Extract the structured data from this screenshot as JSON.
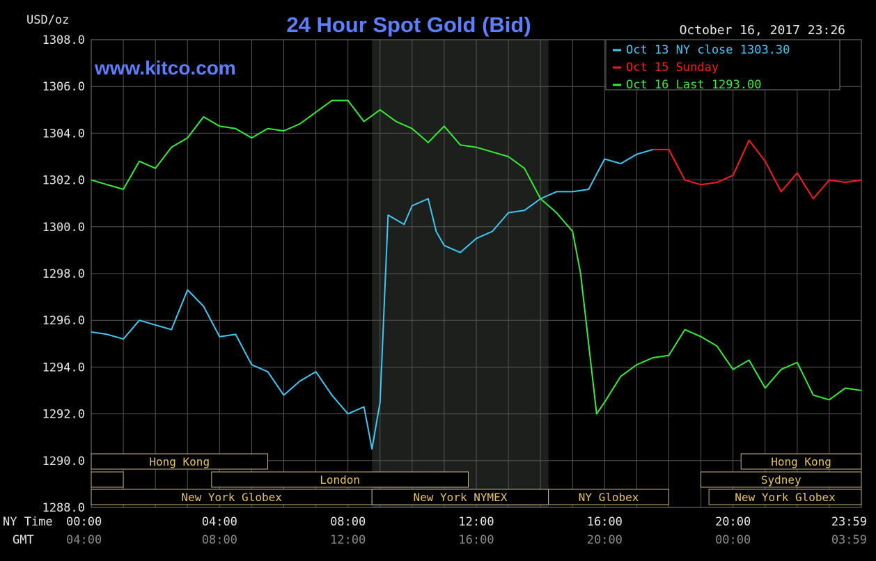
{
  "header": {
    "unit": "USD/oz",
    "title": "24 Hour Spot Gold (Bid)",
    "timestamp": "October 16, 2017 23:26",
    "watermark": "www.kitco.com"
  },
  "legend": [
    {
      "label": "Oct 13 NY close 1303.30",
      "color": "#3ec8f4"
    },
    {
      "label": "Oct 15 Sunday",
      "color": "#ff1a1a"
    },
    {
      "label": "Oct 16 Last 1293.00",
      "color": "#33ee33"
    }
  ],
  "axis_labels": {
    "ny_time": "NY Time",
    "gmt": "GMT"
  },
  "sessions": [
    {
      "label": "Hong Kong",
      "start": 0,
      "end": 5.5,
      "row": 0
    },
    {
      "label": "Hong Kong",
      "start": 20.25,
      "end": 24,
      "row": 0
    },
    {
      "label": "",
      "start": 0,
      "end": 1,
      "row": 1
    },
    {
      "label": "London",
      "start": 3.75,
      "end": 11.75,
      "row": 1
    },
    {
      "label": "Sydney",
      "start": 19,
      "end": 24,
      "row": 1
    },
    {
      "label": "New York Globex",
      "start": 0,
      "end": 8.75,
      "row": 2
    },
    {
      "label": "New York NYMEX",
      "start": 8.75,
      "end": 14.25,
      "row": 2
    },
    {
      "label": "NY Globex",
      "start": 14.25,
      "end": 18,
      "row": 2
    },
    {
      "label": "New York Globex",
      "start": 19.25,
      "end": 24,
      "row": 2
    }
  ],
  "chart_data": {
    "type": "line",
    "title": "24 Hour Spot Gold (Bid)",
    "ylabel": "USD/oz",
    "ylim": [
      1288,
      1308
    ],
    "y_ticks": [
      "1288.0",
      "1290.0",
      "1292.0",
      "1294.0",
      "1296.0",
      "1298.0",
      "1300.0",
      "1302.0",
      "1304.0",
      "1306.0",
      "1308.0"
    ],
    "xlim": [
      0,
      24
    ],
    "x_ticks_ny": [
      "00:00",
      "04:00",
      "08:00",
      "12:00",
      "16:00",
      "20:00",
      "23:59"
    ],
    "x_ticks_gmt": [
      "04:00",
      "08:00",
      "12:00",
      "16:00",
      "20:00",
      "00:00",
      "03:59"
    ],
    "highlight_band": [
      8.75,
      14.25
    ],
    "grid": true,
    "legend_position": "top-right",
    "series": [
      {
        "name": "Oct 13 NY close 1303.30",
        "color": "#3ec8f4",
        "points": [
          [
            0,
            1295.5
          ],
          [
            0.5,
            1295.4
          ],
          [
            1,
            1295.2
          ],
          [
            1.5,
            1296.0
          ],
          [
            2,
            1295.8
          ],
          [
            2.5,
            1295.6
          ],
          [
            3,
            1297.3
          ],
          [
            3.5,
            1296.6
          ],
          [
            4,
            1295.3
          ],
          [
            4.5,
            1295.4
          ],
          [
            5,
            1294.1
          ],
          [
            5.5,
            1293.8
          ],
          [
            6,
            1292.8
          ],
          [
            6.5,
            1293.4
          ],
          [
            7,
            1293.8
          ],
          [
            7.5,
            1292.8
          ],
          [
            8,
            1292.0
          ],
          [
            8.5,
            1292.3
          ],
          [
            8.75,
            1290.5
          ],
          [
            9,
            1292.5
          ],
          [
            9.25,
            1300.5
          ],
          [
            9.75,
            1300.1
          ],
          [
            10,
            1300.9
          ],
          [
            10.5,
            1301.2
          ],
          [
            10.75,
            1299.8
          ],
          [
            11,
            1299.2
          ],
          [
            11.5,
            1298.9
          ],
          [
            12,
            1299.5
          ],
          [
            12.5,
            1299.8
          ],
          [
            13,
            1300.6
          ],
          [
            13.5,
            1300.7
          ],
          [
            14,
            1301.2
          ],
          [
            14.5,
            1301.5
          ],
          [
            15,
            1301.5
          ],
          [
            15.5,
            1301.6
          ],
          [
            16,
            1302.9
          ],
          [
            16.5,
            1302.7
          ],
          [
            17,
            1303.1
          ],
          [
            17.5,
            1303.3
          ]
        ]
      },
      {
        "name": "Oct 15 Sunday",
        "color": "#ff1a1a",
        "points": [
          [
            17.5,
            1303.3
          ],
          [
            18,
            1303.3
          ],
          [
            18.5,
            1302.0
          ],
          [
            19,
            1301.8
          ],
          [
            19.5,
            1301.9
          ],
          [
            20,
            1302.2
          ],
          [
            20.5,
            1303.7
          ],
          [
            21,
            1302.8
          ],
          [
            21.5,
            1301.5
          ],
          [
            22,
            1302.3
          ],
          [
            22.5,
            1301.2
          ],
          [
            23,
            1302.0
          ],
          [
            23.5,
            1301.9
          ],
          [
            24,
            1302.0
          ]
        ]
      },
      {
        "name": "Oct 16 Last 1293.00",
        "color": "#33ee33",
        "points": [
          [
            0,
            1302.0
          ],
          [
            0.5,
            1301.8
          ],
          [
            1,
            1301.6
          ],
          [
            1.5,
            1302.8
          ],
          [
            2,
            1302.5
          ],
          [
            2.5,
            1303.4
          ],
          [
            3,
            1303.8
          ],
          [
            3.5,
            1304.7
          ],
          [
            4,
            1304.3
          ],
          [
            4.5,
            1304.2
          ],
          [
            5,
            1303.8
          ],
          [
            5.5,
            1304.2
          ],
          [
            6,
            1304.1
          ],
          [
            6.5,
            1304.4
          ],
          [
            7,
            1304.9
          ],
          [
            7.5,
            1305.4
          ],
          [
            8,
            1305.4
          ],
          [
            8.5,
            1304.5
          ],
          [
            9,
            1305.0
          ],
          [
            9.5,
            1304.5
          ],
          [
            10,
            1304.2
          ],
          [
            10.5,
            1303.6
          ],
          [
            11,
            1304.3
          ],
          [
            11.5,
            1303.5
          ],
          [
            12,
            1303.4
          ],
          [
            12.5,
            1303.2
          ],
          [
            13,
            1303.0
          ],
          [
            13.5,
            1302.5
          ],
          [
            14,
            1301.2
          ],
          [
            14.5,
            1300.6
          ],
          [
            15,
            1299.8
          ],
          [
            15.25,
            1298.0
          ],
          [
            15.5,
            1295.0
          ],
          [
            15.75,
            1292.0
          ],
          [
            16,
            1292.5
          ],
          [
            16.5,
            1293.6
          ],
          [
            17,
            1294.1
          ],
          [
            17.5,
            1294.4
          ],
          [
            18,
            1294.5
          ],
          [
            18.5,
            1295.6
          ],
          [
            19,
            1295.3
          ],
          [
            19.5,
            1294.9
          ],
          [
            20,
            1293.9
          ],
          [
            20.5,
            1294.3
          ],
          [
            21,
            1293.1
          ],
          [
            21.5,
            1293.9
          ],
          [
            22,
            1294.2
          ],
          [
            22.5,
            1292.8
          ],
          [
            23,
            1292.6
          ],
          [
            23.5,
            1293.1
          ],
          [
            24,
            1293.0
          ]
        ]
      }
    ]
  }
}
